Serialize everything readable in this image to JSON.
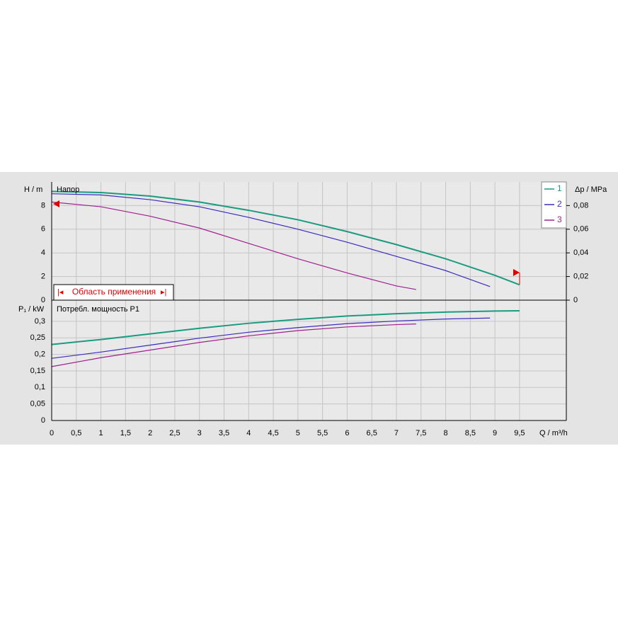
{
  "chart_data": [
    {
      "type": "line",
      "title": "Напор",
      "y_label": "H / m",
      "y2_label": "Δp / MPa",
      "ylim": [
        0,
        10
      ],
      "yticks": [
        0,
        2,
        4,
        6,
        8
      ],
      "y2lim": [
        0,
        0.1
      ],
      "y2ticks": [
        0,
        {
          "value": 0.02,
          "label": "0,02"
        },
        {
          "value": 0.04,
          "label": "0,04"
        },
        {
          "value": 0.06,
          "label": "0,06"
        },
        {
          "value": 0.08,
          "label": "0,08"
        }
      ],
      "annotation": "Область применения",
      "grid": true,
      "series": [
        {
          "name": "1",
          "color": "#1a9b7f",
          "x": [
            0,
            1,
            2,
            3,
            4,
            5,
            6,
            7,
            8,
            9,
            9.5
          ],
          "values": [
            9.2,
            9.1,
            8.8,
            8.3,
            7.6,
            6.8,
            5.8,
            4.7,
            3.5,
            2.1,
            1.3
          ]
        },
        {
          "name": "2",
          "color": "#3b2bbf",
          "x": [
            0,
            1,
            2,
            3,
            4,
            5,
            6,
            7,
            8,
            8.9
          ],
          "values": [
            9.0,
            8.9,
            8.5,
            7.9,
            7.0,
            6.0,
            4.9,
            3.7,
            2.5,
            1.15
          ]
        },
        {
          "name": "3",
          "color": "#a0208f",
          "x": [
            0,
            1,
            2,
            3,
            4,
            5,
            6,
            7,
            7.4
          ],
          "values": [
            8.3,
            7.9,
            7.1,
            6.1,
            4.8,
            3.5,
            2.3,
            1.2,
            0.9
          ]
        }
      ]
    },
    {
      "type": "line",
      "title": "Потребл. мощность P1",
      "y_label": "P₁ / kW",
      "x_label": "Q / m³/h",
      "xlim": [
        0,
        10.45
      ],
      "xticks": [
        0,
        {
          "value": 0.5,
          "label": "0,5"
        },
        1,
        {
          "value": 1.5,
          "label": "1,5"
        },
        2,
        {
          "value": 2.5,
          "label": "2,5"
        },
        3,
        {
          "value": 3.5,
          "label": "3,5"
        },
        4,
        {
          "value": 4.5,
          "label": "4,5"
        },
        5,
        {
          "value": 5.5,
          "label": "5,5"
        },
        6,
        {
          "value": 6.5,
          "label": "6,5"
        },
        7,
        {
          "value": 7.5,
          "label": "7,5"
        },
        8,
        {
          "value": 8.5,
          "label": "8,5"
        },
        9,
        {
          "value": 9.5,
          "label": "9,5"
        }
      ],
      "ylim": [
        0,
        0.364
      ],
      "yticks": [
        0,
        {
          "value": 0.05,
          "label": "0,05"
        },
        {
          "value": 0.1,
          "label": "0,1"
        },
        {
          "value": 0.15,
          "label": "0,15"
        },
        {
          "value": 0.2,
          "label": "0,2"
        },
        {
          "value": 0.25,
          "label": "0,25"
        },
        {
          "value": 0.3,
          "label": "0,3"
        }
      ],
      "grid": true,
      "series": [
        {
          "name": "1",
          "color": "#1a9b7f",
          "x": [
            0,
            1,
            2,
            3,
            4,
            5,
            6,
            7,
            8,
            9,
            9.5
          ],
          "values": [
            0.23,
            0.245,
            0.262,
            0.279,
            0.294,
            0.306,
            0.316,
            0.323,
            0.328,
            0.331,
            0.332
          ]
        },
        {
          "name": "2",
          "color": "#3b2bbf",
          "x": [
            0,
            1,
            2,
            3,
            4,
            5,
            6,
            7,
            8,
            8.9
          ],
          "values": [
            0.188,
            0.207,
            0.228,
            0.249,
            0.267,
            0.281,
            0.293,
            0.301,
            0.307,
            0.31
          ]
        },
        {
          "name": "3",
          "color": "#a0208f",
          "x": [
            0,
            1,
            2,
            3,
            4,
            5,
            6,
            7,
            7.4
          ],
          "values": [
            0.163,
            0.19,
            0.213,
            0.236,
            0.256,
            0.272,
            0.283,
            0.29,
            0.292
          ]
        }
      ]
    }
  ]
}
